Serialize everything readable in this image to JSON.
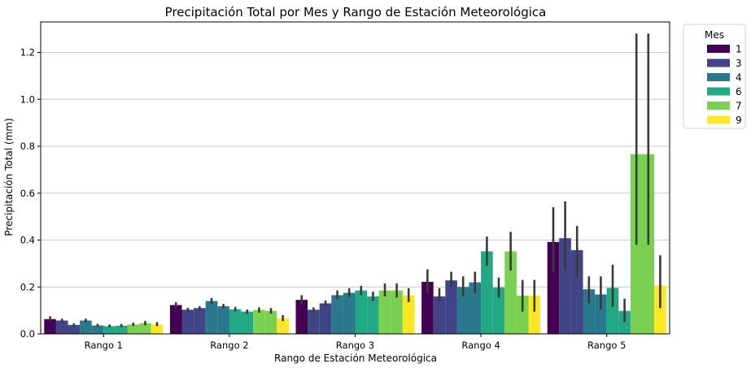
{
  "chart_data": {
    "type": "bar",
    "title": "Precipitación Total por Mes y Rango de Estación Meteorológica",
    "xlabel": "Rango de Estación Meteorológica",
    "ylabel": "Precipitación Total (mm)",
    "categories": [
      "Rango 1",
      "Rango 2",
      "Rango 3",
      "Rango 4",
      "Rango 5"
    ],
    "ylim": [
      0,
      1.33
    ],
    "yticks": [
      "0.0",
      "0.2",
      "0.4",
      "0.6",
      "0.8",
      "1.0",
      "1.2"
    ],
    "grid": "horizontal",
    "legend": {
      "title": "Mes",
      "placement": "outside-top-right"
    },
    "bar_hues": [
      "1",
      "3",
      "4",
      "6",
      "7",
      "9"
    ],
    "bars_per_group": [
      [
        {
          "hue": 0,
          "value": 0.063,
          "err": [
            0.055,
            0.075
          ]
        },
        {
          "hue": 1,
          "value": 0.057,
          "err": [
            0.05,
            0.065
          ]
        },
        {
          "hue": 1,
          "value": 0.038,
          "err": [
            0.032,
            0.045
          ]
        },
        {
          "hue": 2,
          "value": 0.057,
          "err": [
            0.05,
            0.065
          ]
        },
        {
          "hue": 2,
          "value": 0.036,
          "err": [
            0.03,
            0.043
          ]
        },
        {
          "hue": 3,
          "value": 0.033,
          "err": [
            0.028,
            0.04
          ]
        },
        {
          "hue": 3,
          "value": 0.035,
          "err": [
            0.029,
            0.042
          ]
        },
        {
          "hue": 4,
          "value": 0.04,
          "err": [
            0.033,
            0.048
          ]
        },
        {
          "hue": 4,
          "value": 0.045,
          "err": [
            0.037,
            0.055
          ]
        },
        {
          "hue": 5,
          "value": 0.04,
          "err": [
            0.033,
            0.05
          ]
        }
      ],
      [
        {
          "hue": 0,
          "value": 0.123,
          "err": [
            0.112,
            0.135
          ]
        },
        {
          "hue": 1,
          "value": 0.103,
          "err": [
            0.095,
            0.111
          ]
        },
        {
          "hue": 1,
          "value": 0.11,
          "err": [
            0.102,
            0.118
          ]
        },
        {
          "hue": 2,
          "value": 0.14,
          "err": [
            0.128,
            0.153
          ]
        },
        {
          "hue": 2,
          "value": 0.118,
          "err": [
            0.108,
            0.128
          ]
        },
        {
          "hue": 3,
          "value": 0.105,
          "err": [
            0.096,
            0.115
          ]
        },
        {
          "hue": 3,
          "value": 0.095,
          "err": [
            0.086,
            0.104
          ]
        },
        {
          "hue": 4,
          "value": 0.102,
          "err": [
            0.09,
            0.113
          ]
        },
        {
          "hue": 4,
          "value": 0.098,
          "err": [
            0.086,
            0.11
          ]
        },
        {
          "hue": 5,
          "value": 0.067,
          "err": [
            0.055,
            0.08
          ]
        }
      ],
      [
        {
          "hue": 0,
          "value": 0.145,
          "err": [
            0.125,
            0.165
          ]
        },
        {
          "hue": 1,
          "value": 0.103,
          "err": [
            0.093,
            0.113
          ]
        },
        {
          "hue": 1,
          "value": 0.13,
          "err": [
            0.118,
            0.142
          ]
        },
        {
          "hue": 2,
          "value": 0.165,
          "err": [
            0.148,
            0.185
          ]
        },
        {
          "hue": 2,
          "value": 0.175,
          "err": [
            0.158,
            0.195
          ]
        },
        {
          "hue": 3,
          "value": 0.185,
          "err": [
            0.165,
            0.205
          ]
        },
        {
          "hue": 3,
          "value": 0.16,
          "err": [
            0.14,
            0.18
          ]
        },
        {
          "hue": 4,
          "value": 0.185,
          "err": [
            0.16,
            0.215
          ]
        },
        {
          "hue": 4,
          "value": 0.185,
          "err": [
            0.155,
            0.215
          ]
        },
        {
          "hue": 5,
          "value": 0.165,
          "err": [
            0.135,
            0.195
          ]
        }
      ],
      [
        {
          "hue": 0,
          "value": 0.222,
          "err": [
            0.175,
            0.275
          ]
        },
        {
          "hue": 1,
          "value": 0.16,
          "err": [
            0.14,
            0.195
          ]
        },
        {
          "hue": 1,
          "value": 0.228,
          "err": [
            0.2,
            0.265
          ]
        },
        {
          "hue": 2,
          "value": 0.2,
          "err": [
            0.16,
            0.245
          ]
        },
        {
          "hue": 2,
          "value": 0.22,
          "err": [
            0.175,
            0.265
          ]
        },
        {
          "hue": 3,
          "value": 0.352,
          "err": [
            0.29,
            0.415
          ]
        },
        {
          "hue": 3,
          "value": 0.198,
          "err": [
            0.155,
            0.24
          ]
        },
        {
          "hue": 4,
          "value": 0.352,
          "err": [
            0.27,
            0.435
          ]
        },
        {
          "hue": 4,
          "value": 0.163,
          "err": [
            0.095,
            0.23
          ]
        },
        {
          "hue": 5,
          "value": 0.163,
          "err": [
            0.095,
            0.23
          ]
        }
      ],
      [
        {
          "hue": 0,
          "value": 0.392,
          "err": [
            0.265,
            0.54
          ]
        },
        {
          "hue": 1,
          "value": 0.408,
          "err": [
            0.27,
            0.565
          ]
        },
        {
          "hue": 1,
          "value": 0.357,
          "err": [
            0.24,
            0.46
          ]
        },
        {
          "hue": 2,
          "value": 0.19,
          "err": [
            0.13,
            0.245
          ]
        },
        {
          "hue": 2,
          "value": 0.168,
          "err": [
            0.105,
            0.245
          ]
        },
        {
          "hue": 3,
          "value": 0.196,
          "err": [
            0.115,
            0.295
          ]
        },
        {
          "hue": 3,
          "value": 0.098,
          "err": [
            0.05,
            0.15
          ]
        },
        {
          "hue": 4,
          "value": 0.766,
          "err": [
            0.38,
            1.28
          ]
        },
        {
          "hue": 4,
          "value": 0.766,
          "err": [
            0.38,
            1.28
          ]
        },
        {
          "hue": 5,
          "value": 0.207,
          "err": [
            0.11,
            0.335
          ]
        }
      ]
    ],
    "series": [
      {
        "name": "1",
        "color": "#440154"
      },
      {
        "name": "3",
        "color": "#414487"
      },
      {
        "name": "4",
        "color": "#2a788e"
      },
      {
        "name": "6",
        "color": "#22a884"
      },
      {
        "name": "7",
        "color": "#7ad151"
      },
      {
        "name": "9",
        "color": "#fde725"
      }
    ]
  }
}
